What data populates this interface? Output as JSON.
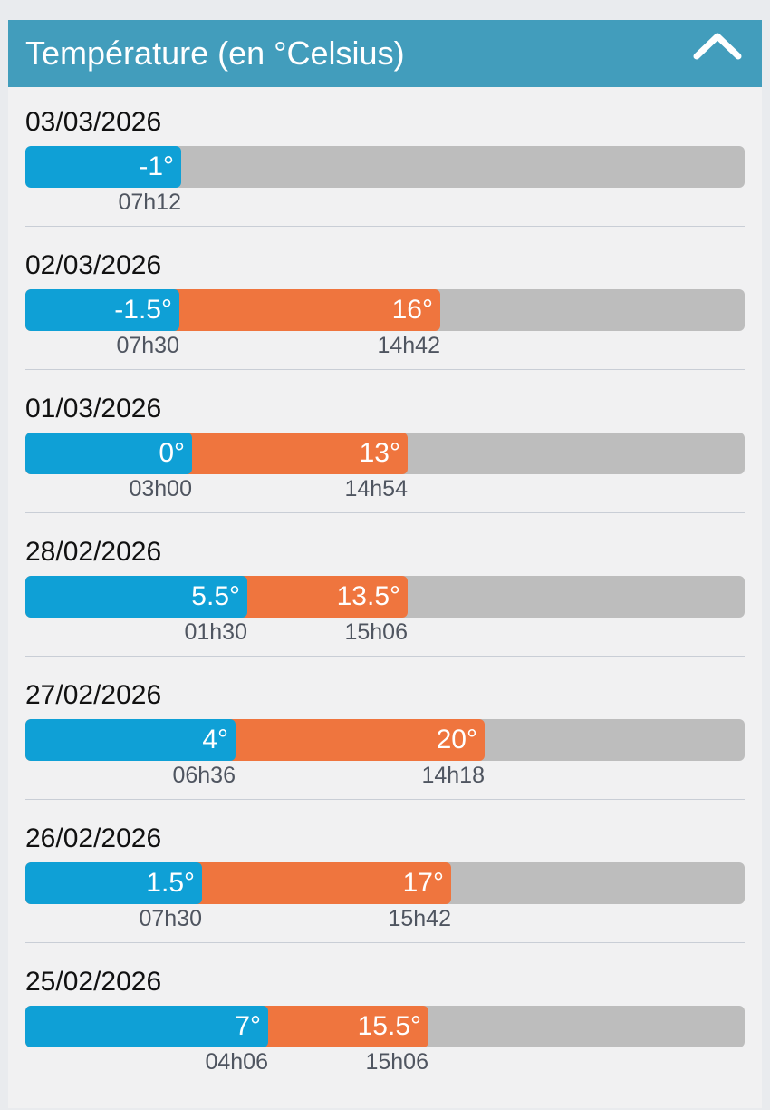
{
  "header": {
    "title": "Température (en °Celsius)",
    "collapse_icon": "chevron-up-icon",
    "background": "#429dbc"
  },
  "colors": {
    "min": "#0fa0d6",
    "max": "#ef753e",
    "track": "#bdbdbd"
  },
  "days": [
    {
      "date": "03/03/2026",
      "min_label": "-1°",
      "min_time": "07h12",
      "min_fill": 0.216,
      "max_label": null,
      "max_time": null,
      "max_fill": null
    },
    {
      "date": "02/03/2026",
      "min_label": "-1.5°",
      "min_time": "07h30",
      "min_fill": 0.214,
      "max_label": "16°",
      "max_time": "14h42",
      "max_fill": 0.577
    },
    {
      "date": "01/03/2026",
      "min_label": "0°",
      "min_time": "03h00",
      "min_fill": 0.232,
      "max_label": "13°",
      "max_time": "14h54",
      "max_fill": 0.531
    },
    {
      "date": "28/02/2026",
      "min_label": "5.5°",
      "min_time": "01h30",
      "min_fill": 0.308,
      "max_label": "13.5°",
      "max_time": "15h06",
      "max_fill": 0.531
    },
    {
      "date": "27/02/2026",
      "min_label": "4°",
      "min_time": "06h36",
      "min_fill": 0.292,
      "max_label": "20°",
      "max_time": "14h18",
      "max_fill": 0.638
    },
    {
      "date": "26/02/2026",
      "min_label": "1.5°",
      "min_time": "07h30",
      "min_fill": 0.245,
      "max_label": "17°",
      "max_time": "15h42",
      "max_fill": 0.592
    },
    {
      "date": "25/02/2026",
      "min_label": "7°",
      "min_time": "04h06",
      "min_fill": 0.338,
      "max_label": "15.5°",
      "max_time": "15h06",
      "max_fill": 0.561
    }
  ]
}
